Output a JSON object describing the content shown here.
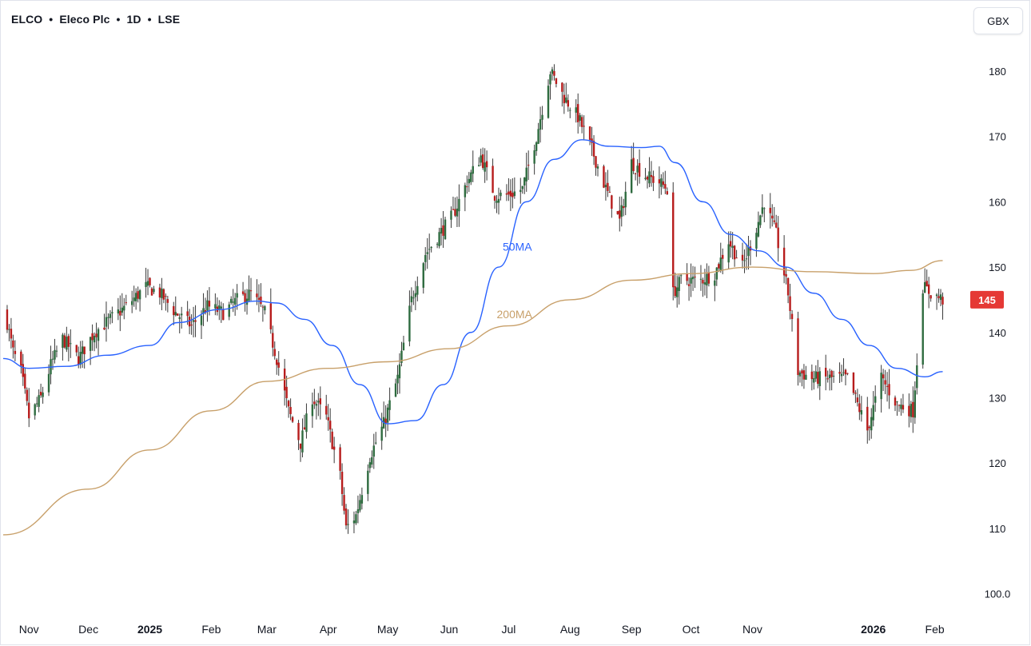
{
  "header": {
    "symbol": "ELCO",
    "name": "Eleco Plc",
    "interval": "1D",
    "exchange": "LSE",
    "separator": "•",
    "currency_button": "GBX"
  },
  "colors": {
    "up": "#26a69a",
    "up_body": "#2e6b3f",
    "down": "#b71c1c",
    "wick": "#3a3a3a",
    "ma50": "#2962ff",
    "ma200": "#c8a06a",
    "price_tag": "#e53935"
  },
  "chart_data": {
    "type": "candlestick",
    "y_unit": "GBX",
    "ylim": [
      97,
      186
    ],
    "y_ticks": [
      100,
      110,
      120,
      130,
      140,
      150,
      160,
      170,
      180
    ],
    "y_tick_labels": [
      "100.0",
      "110",
      "120",
      "130",
      "140",
      "150",
      "160",
      "170",
      "180"
    ],
    "x_range": [
      "2024-10-19",
      "2026-02-06"
    ],
    "x_ticks": [
      {
        "label": "Nov",
        "date": "2024-11-01",
        "bold": false
      },
      {
        "label": "Dec",
        "date": "2024-12-01",
        "bold": false
      },
      {
        "label": "2025",
        "date": "2025-01-01",
        "bold": true
      },
      {
        "label": "Feb",
        "date": "2025-02-01",
        "bold": false
      },
      {
        "label": "Mar",
        "date": "2025-03-01",
        "bold": false
      },
      {
        "label": "Apr",
        "date": "2025-04-01",
        "bold": false
      },
      {
        "label": "May",
        "date": "2025-05-01",
        "bold": false
      },
      {
        "label": "Jun",
        "date": "2025-06-01",
        "bold": false
      },
      {
        "label": "Jul",
        "date": "2025-07-01",
        "bold": false
      },
      {
        "label": "Aug",
        "date": "2025-08-01",
        "bold": false
      },
      {
        "label": "Sep",
        "date": "2025-09-01",
        "bold": false
      },
      {
        "label": "Oct",
        "date": "2025-10-01",
        "bold": false
      },
      {
        "label": "Nov",
        "date": "2025-11-01",
        "bold": false
      },
      {
        "label": "2026",
        "date": "2026-01-01",
        "bold": true
      },
      {
        "label": "Feb",
        "date": "2026-02-01",
        "bold": false
      }
    ],
    "last_price": 145,
    "last_price_label": "145",
    "price_anchors": [
      [
        "2024-10-20",
        143
      ],
      [
        "2024-10-24",
        137
      ],
      [
        "2024-10-28",
        134
      ],
      [
        "2024-11-01",
        127
      ],
      [
        "2024-11-07",
        130
      ],
      [
        "2024-11-12",
        135
      ],
      [
        "2024-11-18",
        139
      ],
      [
        "2024-11-26",
        136
      ],
      [
        "2024-12-04",
        140
      ],
      [
        "2024-12-12",
        142
      ],
      [
        "2024-12-20",
        144
      ],
      [
        "2024-12-30",
        147
      ],
      [
        "2025-01-06",
        146
      ],
      [
        "2025-01-14",
        143
      ],
      [
        "2025-01-22",
        141
      ],
      [
        "2025-01-30",
        144
      ],
      [
        "2025-02-07",
        143
      ],
      [
        "2025-02-14",
        145
      ],
      [
        "2025-02-21",
        146
      ],
      [
        "2025-02-28",
        143
      ],
      [
        "2025-03-06",
        136
      ],
      [
        "2025-03-12",
        128
      ],
      [
        "2025-03-18",
        123
      ],
      [
        "2025-03-24",
        130
      ],
      [
        "2025-03-31",
        127
      ],
      [
        "2025-04-07",
        118
      ],
      [
        "2025-04-10",
        110
      ],
      [
        "2025-04-15",
        112
      ],
      [
        "2025-04-22",
        121
      ],
      [
        "2025-04-29",
        126
      ],
      [
        "2025-05-06",
        133
      ],
      [
        "2025-05-13",
        145
      ],
      [
        "2025-05-20",
        152
      ],
      [
        "2025-05-27",
        155
      ],
      [
        "2025-06-03",
        158
      ],
      [
        "2025-06-10",
        163
      ],
      [
        "2025-06-17",
        167
      ],
      [
        "2025-06-24",
        161
      ],
      [
        "2025-07-01",
        161
      ],
      [
        "2025-07-08",
        162
      ],
      [
        "2025-07-15",
        170
      ],
      [
        "2025-07-22",
        180
      ],
      [
        "2025-07-29",
        176
      ],
      [
        "2025-08-05",
        173
      ],
      [
        "2025-08-12",
        168
      ],
      [
        "2025-08-19",
        162
      ],
      [
        "2025-08-26",
        157
      ],
      [
        "2025-09-01",
        166
      ],
      [
        "2025-09-08",
        164
      ],
      [
        "2025-09-15",
        163
      ],
      [
        "2025-09-19",
        162
      ],
      [
        "2025-09-22",
        146
      ],
      [
        "2025-09-26",
        148
      ],
      [
        "2025-10-06",
        148
      ],
      [
        "2025-10-13",
        149
      ],
      [
        "2025-10-20",
        154
      ],
      [
        "2025-10-27",
        150
      ],
      [
        "2025-11-03",
        156
      ],
      [
        "2025-11-07",
        160
      ],
      [
        "2025-11-13",
        155
      ],
      [
        "2025-11-19",
        146
      ],
      [
        "2025-11-24",
        134
      ],
      [
        "2025-12-01",
        133
      ],
      [
        "2025-12-10",
        133
      ],
      [
        "2025-12-19",
        133
      ],
      [
        "2025-12-29",
        125
      ],
      [
        "2026-01-05",
        133
      ],
      [
        "2026-01-13",
        129
      ],
      [
        "2026-01-21",
        128
      ],
      [
        "2026-01-26",
        147
      ],
      [
        "2026-01-30",
        146
      ],
      [
        "2026-02-05",
        145
      ]
    ],
    "series": [
      {
        "name": "50MA",
        "label_date": "2025-06-28",
        "label_value": 152.5,
        "points": [
          [
            "2024-10-19",
            136
          ],
          [
            "2024-11-01",
            134.5
          ],
          [
            "2024-11-20",
            134.8
          ],
          [
            "2024-12-10",
            136.5
          ],
          [
            "2025-01-01",
            138
          ],
          [
            "2025-01-15",
            141.5
          ],
          [
            "2025-02-05",
            143.5
          ],
          [
            "2025-02-24",
            144.8
          ],
          [
            "2025-03-06",
            144.5
          ],
          [
            "2025-03-20",
            142
          ],
          [
            "2025-04-03",
            138
          ],
          [
            "2025-04-17",
            132
          ],
          [
            "2025-05-01",
            126
          ],
          [
            "2025-05-15",
            126.5
          ],
          [
            "2025-05-29",
            132
          ],
          [
            "2025-06-12",
            140
          ],
          [
            "2025-06-26",
            150
          ],
          [
            "2025-07-10",
            160
          ],
          [
            "2025-07-24",
            166.5
          ],
          [
            "2025-08-07",
            169.5
          ],
          [
            "2025-08-21",
            168.5
          ],
          [
            "2025-09-06",
            168.3
          ],
          [
            "2025-09-15",
            168.5
          ],
          [
            "2025-09-23",
            166
          ],
          [
            "2025-10-07",
            160
          ],
          [
            "2025-10-21",
            155
          ],
          [
            "2025-11-04",
            152.5
          ],
          [
            "2025-11-18",
            150
          ],
          [
            "2025-12-02",
            146
          ],
          [
            "2025-12-16",
            142
          ],
          [
            "2025-12-30",
            138
          ],
          [
            "2026-01-13",
            134.5
          ],
          [
            "2026-01-27",
            133.2
          ],
          [
            "2026-02-05",
            134
          ]
        ]
      },
      {
        "name": "200MA",
        "label_date": "2025-06-25",
        "label_value": 142.2,
        "points": [
          [
            "2024-10-19",
            109
          ],
          [
            "2024-12-01",
            116
          ],
          [
            "2025-01-01",
            122
          ],
          [
            "2025-02-01",
            128
          ],
          [
            "2025-03-01",
            132.5
          ],
          [
            "2025-04-01",
            134.5
          ],
          [
            "2025-05-01",
            135.5
          ],
          [
            "2025-06-01",
            137.5
          ],
          [
            "2025-07-01",
            141
          ],
          [
            "2025-08-01",
            145
          ],
          [
            "2025-09-01",
            148
          ],
          [
            "2025-10-01",
            149
          ],
          [
            "2025-11-01",
            150
          ],
          [
            "2025-12-01",
            149.3
          ],
          [
            "2026-01-01",
            149
          ],
          [
            "2026-01-20",
            149.5
          ],
          [
            "2026-02-05",
            151
          ]
        ]
      }
    ]
  }
}
